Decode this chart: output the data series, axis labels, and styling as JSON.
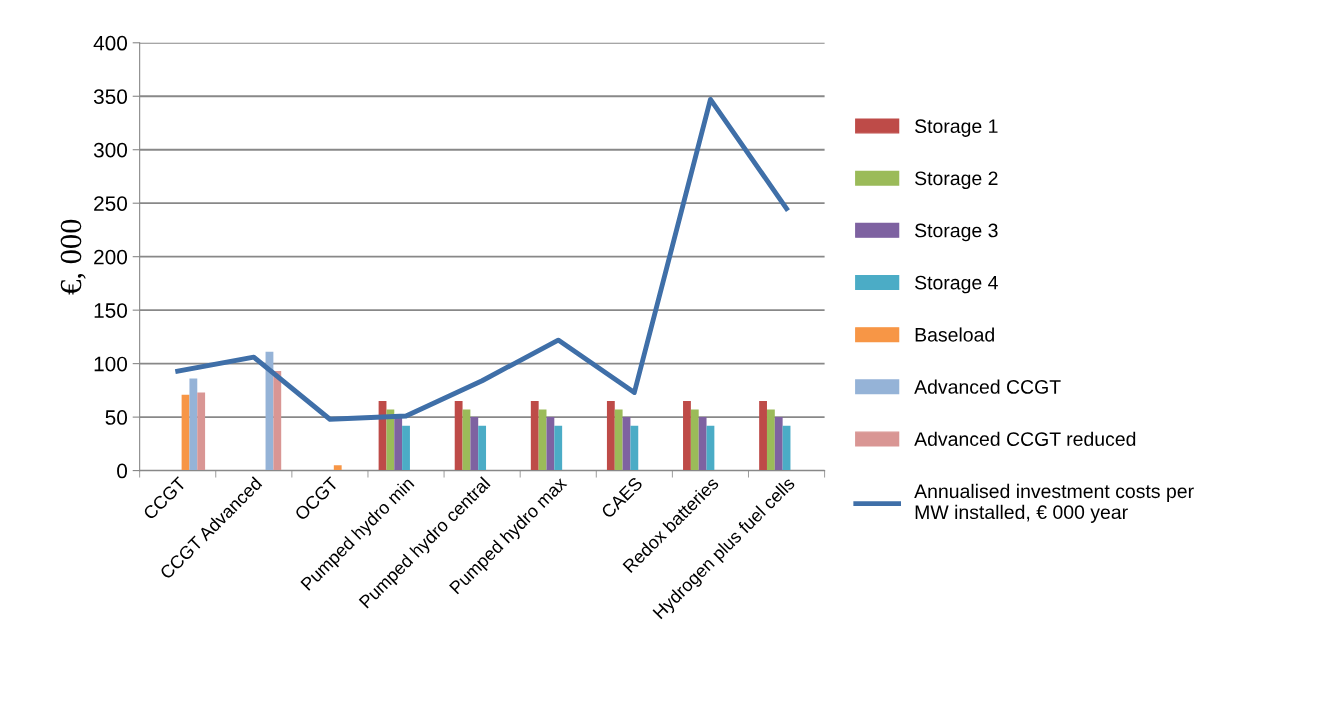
{
  "chart_data": {
    "type": "bar",
    "ylabel": "€, 000",
    "categories": [
      "CCGT",
      "CCGT Advanced",
      "OCGT",
      "Pumped hydro min",
      "Pumped hydro central",
      "Pumped hydro max",
      "CAES",
      "Redox batteries",
      "Hydrogen plus fuel cells"
    ],
    "series": [
      {
        "name": "Storage 1",
        "color": "#be4b48",
        "values": [
          null,
          null,
          null,
          65,
          65,
          65,
          65,
          65,
          65
        ]
      },
      {
        "name": "Storage 2",
        "color": "#9bbb59",
        "values": [
          null,
          null,
          null,
          57,
          57,
          57,
          57,
          57,
          57
        ]
      },
      {
        "name": "Storage 3",
        "color": "#7e62a1",
        "values": [
          null,
          null,
          null,
          50,
          50,
          50,
          50,
          50,
          50
        ]
      },
      {
        "name": "Storage 4",
        "color": "#4bacc6",
        "values": [
          null,
          null,
          null,
          42,
          42,
          42,
          42,
          42,
          42
        ]
      },
      {
        "name": "Baseload",
        "color": "#f79646",
        "values": [
          71,
          null,
          5,
          null,
          null,
          null,
          null,
          null,
          null
        ]
      },
      {
        "name": "Advanced CCGT",
        "color": "#95b3d7",
        "values": [
          86,
          111,
          null,
          null,
          null,
          null,
          null,
          null,
          null
        ]
      },
      {
        "name": "Advanced CCGT reduced",
        "color": "#d99694",
        "values": [
          73,
          93,
          null,
          null,
          null,
          null,
          null,
          null,
          null
        ]
      },
      {
        "name": "Annualised investment costs per\nMW installed, € 000 year",
        "color": "#3f6fa8",
        "type": "line",
        "values": [
          93,
          106,
          48,
          51,
          84,
          122,
          73,
          347,
          245
        ]
      }
    ],
    "ylim": [
      0,
      400
    ],
    "yticks": [
      0,
      50,
      100,
      150,
      200,
      250,
      300,
      350,
      400
    ],
    "grid": "y",
    "legend": "right",
    "marker": "none",
    "line_style": "solid"
  }
}
